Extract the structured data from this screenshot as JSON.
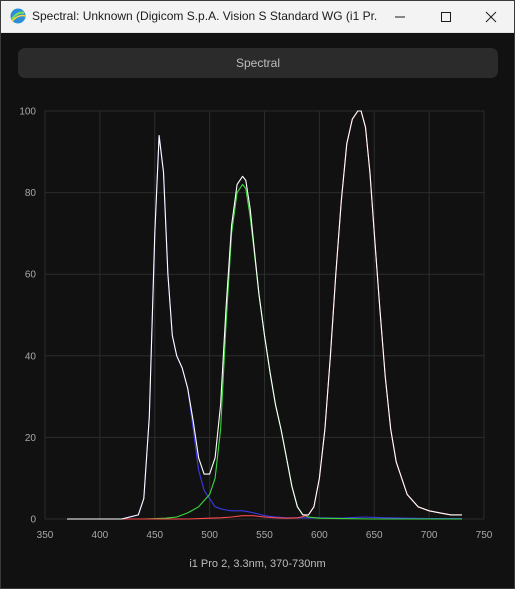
{
  "window": {
    "title": "Spectral: Unknown (Digicom S.p.A. Vision S Standard WG (i1 Pr...",
    "minimize_icon": "minimize-icon",
    "maximize_icon": "maximize-icon",
    "close_icon": "close-icon"
  },
  "toolbar": {
    "spectral_label": "Spectral"
  },
  "caption": "i1 Pro 2, 3.3nm, 370-730nm",
  "colors": {
    "white": "#ffffff",
    "blue": "#3a3ae8",
    "green": "#3cd83c",
    "red": "#ff4a4a",
    "grid": "#2c2c2c"
  },
  "chart_data": {
    "type": "line",
    "xlim": [
      350,
      750
    ],
    "ylim": [
      0,
      100
    ],
    "xticks": [
      "350",
      "400",
      "450",
      "500",
      "550",
      "600",
      "650",
      "700",
      "750"
    ],
    "yticks": [
      "0",
      "20",
      "40",
      "60",
      "80",
      "100"
    ],
    "grid": true,
    "series": [
      {
        "color": "#ffffff",
        "x": [
          370,
          420,
          435,
          440,
          445,
          450,
          454,
          458,
          462,
          466,
          470,
          475,
          480,
          485,
          490,
          495,
          500,
          505,
          510,
          515,
          520,
          525,
          530,
          533,
          537,
          540,
          545,
          550,
          555,
          560,
          565,
          570,
          575,
          580,
          585,
          590,
          595,
          600,
          605,
          610,
          615,
          620,
          625,
          630,
          635,
          638,
          642,
          646,
          650,
          655,
          660,
          665,
          670,
          680,
          690,
          700,
          710,
          720,
          730
        ],
        "y": [
          0,
          0,
          1,
          5,
          25,
          70,
          94,
          85,
          60,
          45,
          40,
          37,
          32,
          24,
          15,
          11,
          11,
          15,
          28,
          52,
          72,
          82,
          84,
          83,
          76,
          68,
          55,
          45,
          36,
          28,
          22,
          15,
          8,
          3,
          1,
          1,
          3,
          10,
          22,
          40,
          60,
          78,
          92,
          98,
          100,
          100,
          96,
          85,
          70,
          52,
          35,
          22,
          14,
          6,
          3,
          2,
          1.5,
          1,
          1
        ]
      },
      {
        "color": "#3a3ae8",
        "x": [
          370,
          420,
          435,
          440,
          445,
          450,
          454,
          458,
          462,
          466,
          470,
          475,
          480,
          485,
          490,
          495,
          500,
          505,
          510,
          515,
          520,
          525,
          530,
          535,
          540,
          545,
          550,
          560,
          570,
          580,
          590,
          600,
          620,
          640,
          660,
          680,
          700,
          730
        ],
        "y": [
          0,
          0,
          1,
          5,
          25,
          70,
          94,
          85,
          60,
          45,
          40,
          37,
          32,
          22,
          12,
          7,
          5,
          3,
          2.5,
          2.2,
          2,
          2,
          2,
          1.8,
          1.5,
          1.2,
          0.8,
          0.5,
          0.3,
          0.3,
          0.3,
          0.3,
          0.2,
          0.5,
          0.3,
          0.2,
          0.1,
          0.1
        ]
      },
      {
        "color": "#3cd83c",
        "x": [
          370,
          440,
          460,
          470,
          480,
          490,
          495,
          500,
          505,
          510,
          515,
          520,
          525,
          530,
          533,
          537,
          540,
          545,
          550,
          555,
          560,
          565,
          570,
          575,
          580,
          585,
          590,
          600,
          620,
          650,
          700,
          730
        ],
        "y": [
          0,
          0,
          0.2,
          0.5,
          1.5,
          3,
          4.5,
          6,
          10,
          22,
          48,
          70,
          80,
          82,
          81,
          74,
          67,
          55,
          45,
          36,
          28,
          22,
          15,
          8,
          3,
          1,
          0.5,
          0.2,
          0.1,
          0,
          0,
          0
        ]
      },
      {
        "color": "#ff4a4a",
        "x": [
          370,
          480,
          500,
          510,
          520,
          530,
          540,
          550,
          560,
          570,
          580,
          585,
          590,
          595,
          600,
          605,
          610,
          615,
          620,
          625,
          630,
          635,
          638,
          642,
          646,
          650,
          655,
          660,
          665,
          670,
          680,
          690,
          700,
          710,
          720,
          730
        ],
        "y": [
          0,
          0,
          0.2,
          0.3,
          0.5,
          0.8,
          0.8,
          0.5,
          0.3,
          0.2,
          0.3,
          0.6,
          1,
          3,
          10,
          22,
          40,
          60,
          78,
          92,
          98,
          100,
          100,
          96,
          85,
          70,
          52,
          35,
          22,
          14,
          6,
          3,
          2,
          1.5,
          1,
          1
        ]
      }
    ]
  }
}
